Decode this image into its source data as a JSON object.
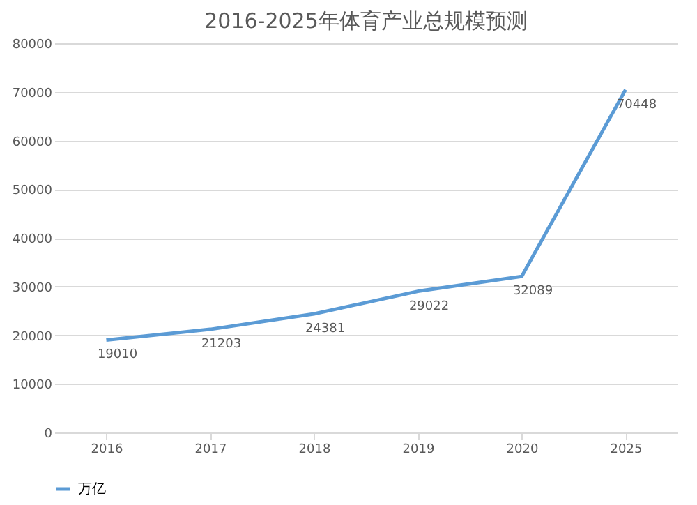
{
  "chart_data": {
    "type": "line",
    "title": "2016-2025年体育产业总规模预测",
    "categories": [
      "2016",
      "2017",
      "2018",
      "2019",
      "2020",
      "2025"
    ],
    "series": [
      {
        "name": "万亿",
        "color": "#5b9bd5",
        "values": [
          19010,
          21203,
          24381,
          29022,
          32089,
          70448
        ]
      }
    ],
    "ylim": [
      0,
      80000
    ],
    "yticks": [
      0,
      10000,
      20000,
      30000,
      40000,
      50000,
      60000,
      70000,
      80000
    ],
    "grid": "y",
    "legend": "bottom",
    "data_labels": true,
    "marker": "none",
    "line_style": "solid"
  }
}
